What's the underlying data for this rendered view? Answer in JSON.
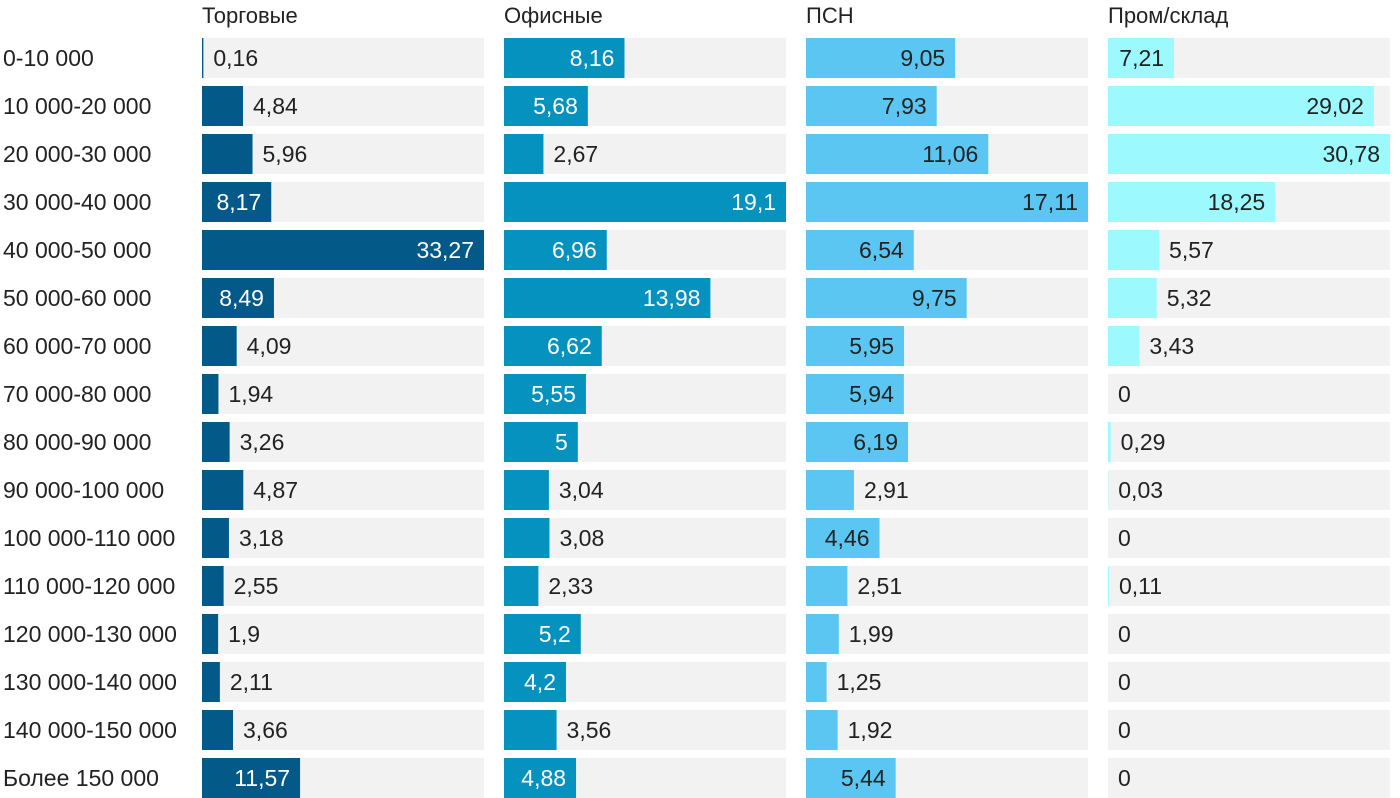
{
  "chart_data": {
    "type": "bar",
    "orientation": "horizontal",
    "grid": false,
    "track_color": "#f2f2f2",
    "categories": [
      "0-10 000",
      "10 000-20 000",
      "20 000-30 000",
      "30 000-40 000",
      "40 000-50 000",
      "50 000-60 000",
      "60 000-70 000",
      "70 000-80 000",
      "80 000-90 000",
      "90 000-100 000",
      "100 000-110 000",
      "110 000-120 000",
      "120 000-130 000",
      "130 000-140 000",
      "140 000-150 000",
      "Более 150 000"
    ],
    "panels": [
      {
        "name": "Торговые",
        "color": "#035a89",
        "xlim": [
          0,
          33.27
        ],
        "values": [
          0.16,
          4.84,
          5.96,
          8.17,
          33.27,
          8.49,
          4.09,
          1.94,
          3.26,
          4.87,
          3.18,
          2.55,
          1.9,
          2.11,
          3.66,
          11.57
        ],
        "value_labels": [
          "0,16",
          "4,84",
          "5,96",
          "8,17",
          "33,27",
          "8,49",
          "4,09",
          "1,94",
          "3,26",
          "4,87",
          "3,18",
          "2,55",
          "1,9",
          "2,11",
          "3,66",
          "11,57"
        ]
      },
      {
        "name": "Офисные",
        "color": "#0692bf",
        "xlim": [
          0,
          19.1
        ],
        "values": [
          8.16,
          5.68,
          2.67,
          19.1,
          6.96,
          13.98,
          6.62,
          5.55,
          5,
          3.04,
          3.08,
          2.33,
          5.2,
          4.2,
          3.56,
          4.88
        ],
        "value_labels": [
          "8,16",
          "5,68",
          "2,67",
          "19,1",
          "6,96",
          "13,98",
          "6,62",
          "5,55",
          "5",
          "3,04",
          "3,08",
          "2,33",
          "5,2",
          "4,2",
          "3,56",
          "4,88"
        ]
      },
      {
        "name": "ПСН",
        "color": "#5cc6f3",
        "xlim": [
          0,
          17.11
        ],
        "values": [
          9.05,
          7.93,
          11.06,
          17.11,
          6.54,
          9.75,
          5.95,
          5.94,
          6.19,
          2.91,
          4.46,
          2.51,
          1.99,
          1.25,
          1.92,
          5.44
        ],
        "value_labels": [
          "9,05",
          "7,93",
          "11,06",
          "17,11",
          "6,54",
          "9,75",
          "5,95",
          "5,94",
          "6,19",
          "2,91",
          "4,46",
          "2,51",
          "1,99",
          "1,25",
          "1,92",
          "5,44"
        ]
      },
      {
        "name": "Пром/склад",
        "color": "#9cf9fd",
        "xlim": [
          0,
          30.78
        ],
        "values": [
          7.21,
          29.02,
          30.78,
          18.25,
          5.57,
          5.32,
          3.43,
          0,
          0.29,
          0.03,
          0,
          0.11,
          0,
          0,
          0,
          0
        ],
        "value_labels": [
          "7,21",
          "29,02",
          "30,78",
          "18,25",
          "5,57",
          "5,32",
          "3,43",
          "0",
          "0,29",
          "0,03",
          "0",
          "0,11",
          "0",
          "0",
          "0",
          "0"
        ]
      }
    ]
  }
}
